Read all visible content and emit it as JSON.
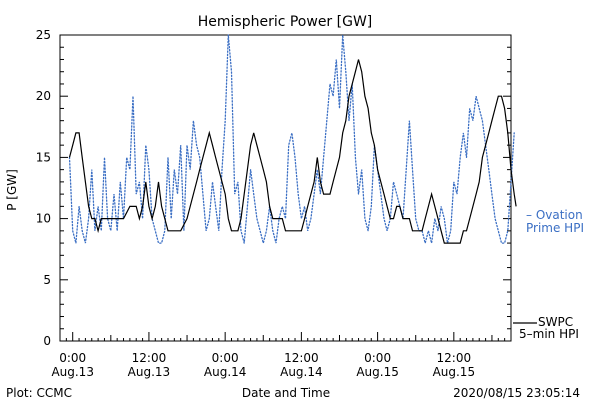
{
  "chart_data": {
    "type": "line",
    "title": "Hemispheric Power [GW]",
    "xlabel": "Date and Time",
    "ylabel": "P [GW]",
    "ylim": [
      0,
      25
    ],
    "yticks": [
      0,
      5,
      10,
      15,
      20,
      25
    ],
    "xlim": [
      -2,
      69
    ],
    "x_unit": "hours since 2020/08/13 00:00",
    "xticks": [
      {
        "x": 0,
        "line1": "0:00",
        "line2": "Aug.13"
      },
      {
        "x": 12,
        "line1": "12:00",
        "line2": "Aug.13"
      },
      {
        "x": 24,
        "line1": "0:00",
        "line2": "Aug.14"
      },
      {
        "x": 36,
        "line1": "12:00",
        "line2": "Aug.14"
      },
      {
        "x": 48,
        "line1": "0:00",
        "line2": "Aug.15"
      },
      {
        "x": 60,
        "line1": "12:00",
        "line2": "Aug.15"
      }
    ],
    "grid": false,
    "series": [
      {
        "name": "SWPC 5-min HPI",
        "style": "solid",
        "color": "#000000",
        "points": [
          [
            -0.5,
            15
          ],
          [
            0,
            16
          ],
          [
            0.5,
            17
          ],
          [
            1,
            17
          ],
          [
            1.5,
            15
          ],
          [
            2,
            13
          ],
          [
            2.5,
            11
          ],
          [
            3,
            10
          ],
          [
            3.5,
            10
          ],
          [
            4,
            9
          ],
          [
            4.5,
            10
          ],
          [
            5,
            10
          ],
          [
            6,
            10
          ],
          [
            7,
            10
          ],
          [
            8,
            10
          ],
          [
            9,
            11
          ],
          [
            10,
            11
          ],
          [
            10.5,
            10
          ],
          [
            11,
            11
          ],
          [
            11.5,
            13
          ],
          [
            12,
            11
          ],
          [
            12.5,
            10
          ],
          [
            13,
            11
          ],
          [
            13.5,
            13
          ],
          [
            14,
            11
          ],
          [
            14.5,
            10
          ],
          [
            15,
            9
          ],
          [
            16,
            9
          ],
          [
            17,
            9
          ],
          [
            18,
            10
          ],
          [
            18.5,
            11
          ],
          [
            19,
            12
          ],
          [
            19.5,
            13
          ],
          [
            20,
            14
          ],
          [
            20.5,
            15
          ],
          [
            21,
            16
          ],
          [
            21.5,
            17
          ],
          [
            22,
            16
          ],
          [
            22.5,
            15
          ],
          [
            23,
            14
          ],
          [
            23.5,
            13
          ],
          [
            24,
            12
          ],
          [
            24.5,
            10
          ],
          [
            25,
            9
          ],
          [
            26,
            9
          ],
          [
            26.5,
            10
          ],
          [
            27,
            12
          ],
          [
            27.5,
            14
          ],
          [
            28,
            16
          ],
          [
            28.5,
            17
          ],
          [
            29,
            16
          ],
          [
            29.5,
            15
          ],
          [
            30,
            14
          ],
          [
            30.5,
            13
          ],
          [
            31,
            11
          ],
          [
            31.5,
            10
          ],
          [
            32,
            10
          ],
          [
            33,
            10
          ],
          [
            33.5,
            9
          ],
          [
            34,
            9
          ],
          [
            35,
            9
          ],
          [
            36,
            9
          ],
          [
            36.5,
            10
          ],
          [
            37,
            11
          ],
          [
            37.5,
            12
          ],
          [
            38,
            13
          ],
          [
            38.5,
            15
          ],
          [
            39,
            13
          ],
          [
            39.5,
            12
          ],
          [
            40,
            12
          ],
          [
            40.5,
            12
          ],
          [
            41,
            13
          ],
          [
            41.5,
            14
          ],
          [
            42,
            15
          ],
          [
            42.5,
            17
          ],
          [
            43,
            18
          ],
          [
            43.5,
            20
          ],
          [
            44,
            21
          ],
          [
            44.5,
            22
          ],
          [
            45,
            23
          ],
          [
            45.5,
            22
          ],
          [
            46,
            20
          ],
          [
            46.5,
            19
          ],
          [
            47,
            17
          ],
          [
            47.5,
            16
          ],
          [
            48,
            14
          ],
          [
            48.5,
            13
          ],
          [
            49,
            12
          ],
          [
            49.5,
            11
          ],
          [
            50,
            10
          ],
          [
            50.5,
            10
          ],
          [
            51,
            11
          ],
          [
            51.5,
            11
          ],
          [
            52,
            10
          ],
          [
            53,
            10
          ],
          [
            53.5,
            9
          ],
          [
            54,
            9
          ],
          [
            55,
            9
          ],
          [
            55.5,
            10
          ],
          [
            56,
            11
          ],
          [
            56.5,
            12
          ],
          [
            57,
            11
          ],
          [
            57.5,
            10
          ],
          [
            58,
            9
          ],
          [
            58.5,
            8
          ],
          [
            59,
            8
          ],
          [
            60,
            8
          ],
          [
            61,
            8
          ],
          [
            61.5,
            9
          ],
          [
            62,
            9
          ],
          [
            62.5,
            10
          ],
          [
            63,
            11
          ],
          [
            63.5,
            12
          ],
          [
            64,
            13
          ],
          [
            64.5,
            15
          ],
          [
            65,
            16
          ],
          [
            65.5,
            17
          ],
          [
            66,
            18
          ],
          [
            66.5,
            19
          ],
          [
            67,
            20
          ],
          [
            67.5,
            20
          ],
          [
            68,
            19
          ],
          [
            68.5,
            17
          ],
          [
            69,
            14
          ],
          [
            69.5,
            12
          ],
          [
            69.8,
            11
          ]
        ]
      },
      {
        "name": "Ovation Prime HPI",
        "style": "dotted",
        "color": "#3b6fc4",
        "points": [
          [
            -0.5,
            15
          ],
          [
            0,
            9
          ],
          [
            0.5,
            8
          ],
          [
            1,
            11
          ],
          [
            1.5,
            9
          ],
          [
            2,
            8
          ],
          [
            2.5,
            10
          ],
          [
            3,
            14
          ],
          [
            3.5,
            9
          ],
          [
            4,
            11
          ],
          [
            4.5,
            9
          ],
          [
            5,
            15
          ],
          [
            5.5,
            10
          ],
          [
            6,
            9
          ],
          [
            6.5,
            12
          ],
          [
            7,
            9
          ],
          [
            7.5,
            13
          ],
          [
            8,
            10
          ],
          [
            8.5,
            15
          ],
          [
            9,
            14
          ],
          [
            9.5,
            20
          ],
          [
            10,
            12
          ],
          [
            10.5,
            13
          ],
          [
            11,
            10
          ],
          [
            11.5,
            16
          ],
          [
            12,
            14
          ],
          [
            12.5,
            10
          ],
          [
            13,
            9
          ],
          [
            13.5,
            8
          ],
          [
            14,
            8
          ],
          [
            14.5,
            9
          ],
          [
            15,
            15
          ],
          [
            15.5,
            10
          ],
          [
            16,
            14
          ],
          [
            16.5,
            12
          ],
          [
            17,
            16
          ],
          [
            17.5,
            9
          ],
          [
            18,
            16
          ],
          [
            18.5,
            14
          ],
          [
            19,
            18
          ],
          [
            19.5,
            16
          ],
          [
            20,
            15
          ],
          [
            20.5,
            12
          ],
          [
            21,
            9
          ],
          [
            21.5,
            10
          ],
          [
            22,
            13
          ],
          [
            22.5,
            11
          ],
          [
            23,
            9
          ],
          [
            23.5,
            14
          ],
          [
            24,
            18
          ],
          [
            24.5,
            25
          ],
          [
            25,
            22
          ],
          [
            25.5,
            12
          ],
          [
            26,
            13
          ],
          [
            26.5,
            9
          ],
          [
            27,
            8
          ],
          [
            27.5,
            11
          ],
          [
            28,
            14
          ],
          [
            28.5,
            12
          ],
          [
            29,
            10
          ],
          [
            29.5,
            9
          ],
          [
            30,
            8
          ],
          [
            30.5,
            9
          ],
          [
            31,
            11
          ],
          [
            31.5,
            9
          ],
          [
            32,
            8
          ],
          [
            32.5,
            10
          ],
          [
            33,
            11
          ],
          [
            33.5,
            10
          ],
          [
            34,
            16
          ],
          [
            34.5,
            17
          ],
          [
            35,
            15
          ],
          [
            35.5,
            12
          ],
          [
            36,
            10
          ],
          [
            36.5,
            11
          ],
          [
            37,
            9
          ],
          [
            37.5,
            10
          ],
          [
            38,
            12
          ],
          [
            38.5,
            14
          ],
          [
            39,
            12
          ],
          [
            39.5,
            15
          ],
          [
            40,
            18
          ],
          [
            40.5,
            21
          ],
          [
            41,
            20
          ],
          [
            41.5,
            23
          ],
          [
            42,
            19
          ],
          [
            42.5,
            25
          ],
          [
            43,
            22
          ],
          [
            43.5,
            18
          ],
          [
            44,
            21
          ],
          [
            44.5,
            15
          ],
          [
            45,
            12
          ],
          [
            45.5,
            14
          ],
          [
            46,
            10
          ],
          [
            46.5,
            9
          ],
          [
            47,
            11
          ],
          [
            47.5,
            16
          ],
          [
            48,
            14
          ],
          [
            48.5,
            12
          ],
          [
            49,
            10
          ],
          [
            49.5,
            9
          ],
          [
            50,
            10
          ],
          [
            50.5,
            13
          ],
          [
            51,
            12
          ],
          [
            51.5,
            11
          ],
          [
            52,
            10
          ],
          [
            52.5,
            14
          ],
          [
            53,
            18
          ],
          [
            53.5,
            14
          ],
          [
            54,
            10
          ],
          [
            54.5,
            9
          ],
          [
            55,
            9
          ],
          [
            55.5,
            8
          ],
          [
            56,
            9
          ],
          [
            56.5,
            8
          ],
          [
            57,
            10
          ],
          [
            57.5,
            9
          ],
          [
            58,
            11
          ],
          [
            58.5,
            10
          ],
          [
            59,
            8
          ],
          [
            59.5,
            9
          ],
          [
            60,
            13
          ],
          [
            60.5,
            12
          ],
          [
            61,
            15
          ],
          [
            61.5,
            17
          ],
          [
            62,
            15
          ],
          [
            62.5,
            19
          ],
          [
            63,
            18
          ],
          [
            63.5,
            20
          ],
          [
            64,
            19
          ],
          [
            64.5,
            18
          ],
          [
            65,
            16
          ],
          [
            65.5,
            14
          ],
          [
            66,
            12
          ],
          [
            66.5,
            10
          ],
          [
            67,
            9
          ],
          [
            67.5,
            8
          ],
          [
            68,
            8
          ],
          [
            68.5,
            9
          ],
          [
            69,
            13
          ],
          [
            69.5,
            17
          ]
        ]
      }
    ]
  },
  "legend": {
    "ovation_line1": "– Ovation",
    "ovation_line2": "Prime HPI",
    "swpc_line1": "SWPC",
    "swpc_line2": "5–min HPI"
  },
  "footer": {
    "left": "Plot: CCMC",
    "center": "Date and Time",
    "right": "2020/08/15 23:05:14"
  }
}
